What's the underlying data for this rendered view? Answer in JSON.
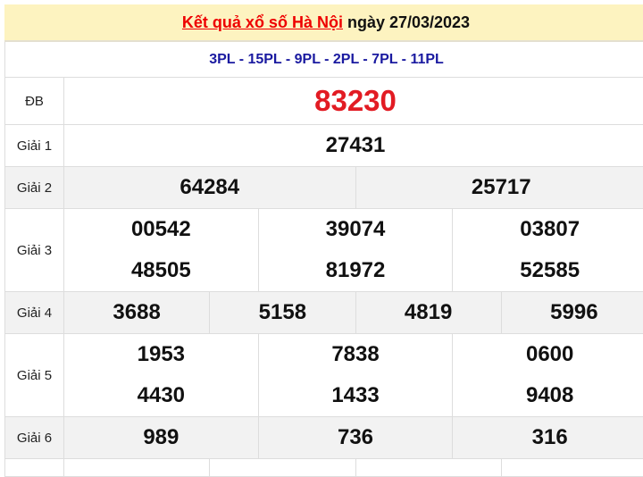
{
  "header": {
    "title_link": "Kết quả xổ số Hà Nội",
    "date_text": "ngày 27/03/2023"
  },
  "codes": "3PL - 15PL - 9PL - 2PL - 7PL - 11PL",
  "prizes": [
    {
      "label": "ĐB",
      "rows": [
        [
          "83230"
        ]
      ]
    },
    {
      "label": "Giải 1",
      "rows": [
        [
          "27431"
        ]
      ]
    },
    {
      "label": "Giải 2",
      "rows": [
        [
          "64284",
          "25717"
        ]
      ]
    },
    {
      "label": "Giải 3",
      "rows": [
        [
          "00542",
          "39074",
          "03807"
        ],
        [
          "48505",
          "81972",
          "52585"
        ]
      ]
    },
    {
      "label": "Giải 4",
      "rows": [
        [
          "3688",
          "5158",
          "4819",
          "5996"
        ]
      ]
    },
    {
      "label": "Giải 5",
      "rows": [
        [
          "1953",
          "7838",
          "0600"
        ],
        [
          "4430",
          "1433",
          "9408"
        ]
      ]
    },
    {
      "label": "Giải 6",
      "rows": [
        [
          "989",
          "736",
          "316"
        ]
      ]
    },
    {
      "label": "",
      "rows": [
        [
          "",
          "",
          "",
          ""
        ]
      ]
    }
  ]
}
